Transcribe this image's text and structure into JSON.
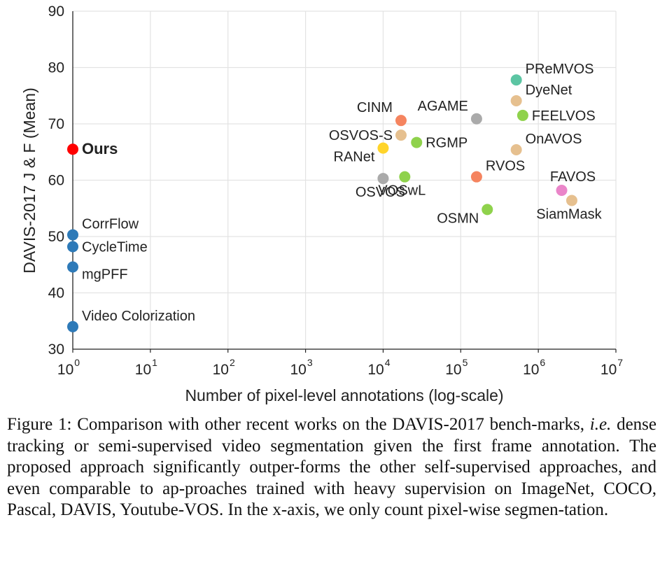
{
  "chart_data": {
    "type": "scatter",
    "title": "",
    "xlabel": "Number of pixel-level annotations (log-scale)",
    "ylabel": "DAVIS-2017 J & F (Mean)",
    "xscale": "log",
    "xlim": [
      1,
      10000000
    ],
    "ylim": [
      30,
      90
    ],
    "x_ticks": [
      {
        "base": "10",
        "exp": "0",
        "value": 1
      },
      {
        "base": "10",
        "exp": "1",
        "value": 10
      },
      {
        "base": "10",
        "exp": "2",
        "value": 100
      },
      {
        "base": "10",
        "exp": "3",
        "value": 1000
      },
      {
        "base": "10",
        "exp": "4",
        "value": 10000
      },
      {
        "base": "10",
        "exp": "5",
        "value": 100000
      },
      {
        "base": "10",
        "exp": "6",
        "value": 1000000
      },
      {
        "base": "10",
        "exp": "7",
        "value": 10000000
      }
    ],
    "y_ticks": [
      "30",
      "40",
      "50",
      "60",
      "70",
      "80",
      "90"
    ],
    "grid": true,
    "points": [
      {
        "name": "Ours",
        "x": 1,
        "y": 65.5,
        "color": "#ff0000",
        "label_pos": "right",
        "bold": true
      },
      {
        "name": "CorrFlow",
        "x": 1,
        "y": 50.3,
        "color": "#2e7ab8",
        "label_pos": "upper-right"
      },
      {
        "name": "CycleTime",
        "x": 1,
        "y": 48.2,
        "color": "#2e7ab8",
        "label_pos": "right"
      },
      {
        "name": "mgPFF",
        "x": 1,
        "y": 44.6,
        "color": "#2e7ab8",
        "label_pos": "lower-right"
      },
      {
        "name": "Video Colorization",
        "x": 1,
        "y": 34.0,
        "color": "#2e7ab8",
        "label_pos": "upper-right"
      },
      {
        "name": "OSVOS",
        "x": 10000,
        "y": 60.3,
        "color": "#aaaaaa",
        "label_pos": "below"
      },
      {
        "name": "RANet",
        "x": 10000,
        "y": 65.7,
        "color": "#ffd42a",
        "label_pos": "lower-left"
      },
      {
        "name": "CINM",
        "x": 17000,
        "y": 70.6,
        "color": "#f5845f",
        "label_pos": "upper-left"
      },
      {
        "name": "OSVOS-S",
        "x": 17000,
        "y": 68.0,
        "color": "#e6c08f",
        "label_pos": "left"
      },
      {
        "name": "VOSwL",
        "x": 19000,
        "y": 60.6,
        "color": "#8fd24c",
        "label_pos": "below"
      },
      {
        "name": "RGMP",
        "x": 27000,
        "y": 66.7,
        "color": "#8fd24c",
        "label_pos": "right"
      },
      {
        "name": "AGAME",
        "x": 160000,
        "y": 70.9,
        "color": "#aaaaaa",
        "label_pos": "upper-left"
      },
      {
        "name": "RVOS",
        "x": 160000,
        "y": 60.6,
        "color": "#f5845f",
        "label_pos": "upper-right"
      },
      {
        "name": "OSMN",
        "x": 220000,
        "y": 54.8,
        "color": "#8fd24c",
        "label_pos": "lower-left"
      },
      {
        "name": "PReMVOS",
        "x": 520000,
        "y": 77.8,
        "color": "#5cc5a3",
        "label_pos": "upper-right"
      },
      {
        "name": "DyeNet",
        "x": 520000,
        "y": 74.1,
        "color": "#e6c08f",
        "label_pos": "upper-right"
      },
      {
        "name": "FEELVOS",
        "x": 630000,
        "y": 71.5,
        "color": "#8fd24c",
        "label_pos": "right"
      },
      {
        "name": "OnAVOS",
        "x": 520000,
        "y": 65.4,
        "color": "#e6c08f",
        "label_pos": "upper-right"
      },
      {
        "name": "FAVOS",
        "x": 2000000,
        "y": 58.2,
        "color": "#ea85c9",
        "label_pos": "above"
      },
      {
        "name": "SiamMask",
        "x": 2700000,
        "y": 56.4,
        "color": "#e6c08f",
        "label_pos": "below"
      }
    ]
  },
  "caption": {
    "prefix": "Figure 1: Comparison with other recent works on the DAVIS-2017 bench-marks, ",
    "italic": "i.e.",
    "suffix": " dense tracking or semi-supervised video segmentation given the first frame annotation.  The proposed approach significantly outper-forms the other self-supervised approaches, and even comparable to ap-proaches trained with heavy supervision on ImageNet, COCO, Pascal, DAVIS, Youtube-VOS. In the x-axis, we only count pixel-wise segmen-tation."
  }
}
